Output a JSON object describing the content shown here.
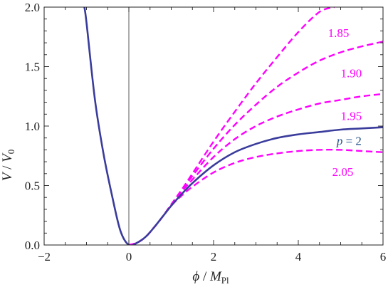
{
  "chart_data": {
    "type": "line",
    "title": "",
    "xlabel": {
      "var": "ϕ",
      "sep": " / ",
      "unit": "M",
      "unit_sub": "Pl"
    },
    "ylabel": {
      "var": "V",
      "sep": " / ",
      "unit": "V",
      "unit_sub": "0"
    },
    "xlim": [
      -2,
      6
    ],
    "ylim": [
      0,
      2
    ],
    "x_ticks": [
      -2,
      0,
      2,
      4,
      6
    ],
    "x_tick_labels": [
      "−2",
      "0",
      "2",
      "4",
      "6"
    ],
    "y_ticks": [
      0,
      0.5,
      1,
      1.5,
      2
    ],
    "y_tick_labels": [
      "0.0",
      "0.5",
      "1.0",
      "1.5",
      "2.0"
    ],
    "grid": false,
    "series": [
      {
        "name": "p = 2",
        "label": {
          "var": "p",
          "rest": " = 2"
        },
        "p": 2,
        "style": "solid",
        "color": "#3a3c9c",
        "x": [
          -1.05,
          -1.0,
          -0.8,
          -0.6,
          -0.4,
          -0.2,
          0,
          0.2,
          0.4,
          0.6,
          0.8,
          1.0,
          1.2,
          1.5,
          2.0,
          2.5,
          3.0,
          3.5,
          4.0,
          4.5,
          5.0,
          5.5,
          6.0
        ],
        "y": [
          2.0,
          1.87,
          1.22,
          0.77,
          0.42,
          0.12,
          0.0,
          0.02,
          0.07,
          0.15,
          0.24,
          0.33,
          0.41,
          0.52,
          0.67,
          0.78,
          0.85,
          0.9,
          0.93,
          0.95,
          0.97,
          0.98,
          0.99
        ]
      },
      {
        "name": "1.85",
        "label": {
          "var": "",
          "rest": "1.85"
        },
        "p": 1.85,
        "style": "dashed",
        "color": "#ff00ff",
        "x": [
          0,
          0.2,
          0.4,
          0.6,
          0.8,
          1.0,
          1.2,
          1.5,
          2.0,
          2.5,
          3.0,
          3.5,
          4.0,
          4.5,
          4.85
        ],
        "y": [
          0.0,
          0.02,
          0.07,
          0.15,
          0.24,
          0.34,
          0.44,
          0.6,
          0.87,
          1.12,
          1.36,
          1.58,
          1.79,
          1.96,
          2.0
        ]
      },
      {
        "name": "1.90",
        "label": {
          "var": "",
          "rest": "1.90"
        },
        "p": 1.9,
        "style": "dashed",
        "color": "#ff00ff",
        "x": [
          0,
          0.2,
          0.4,
          0.6,
          0.8,
          1.0,
          1.2,
          1.5,
          2.0,
          2.5,
          3.0,
          3.5,
          4.0,
          4.5,
          5.0,
          5.5,
          6.0
        ],
        "y": [
          0.0,
          0.02,
          0.07,
          0.15,
          0.24,
          0.34,
          0.44,
          0.58,
          0.81,
          1.01,
          1.18,
          1.33,
          1.45,
          1.55,
          1.62,
          1.67,
          1.71
        ]
      },
      {
        "name": "1.95",
        "label": {
          "var": "",
          "rest": "1.95"
        },
        "p": 1.95,
        "style": "dashed",
        "color": "#ff00ff",
        "x": [
          0,
          0.2,
          0.4,
          0.6,
          0.8,
          1.0,
          1.2,
          1.5,
          2.0,
          2.5,
          3.0,
          3.5,
          4.0,
          4.5,
          5.0,
          5.5,
          6.0
        ],
        "y": [
          0.0,
          0.02,
          0.07,
          0.15,
          0.24,
          0.34,
          0.43,
          0.55,
          0.74,
          0.89,
          1.0,
          1.08,
          1.14,
          1.19,
          1.22,
          1.25,
          1.27
        ]
      },
      {
        "name": "2.05",
        "label": {
          "var": "",
          "rest": "2.05"
        },
        "p": 2.05,
        "style": "dashed",
        "color": "#ff00ff",
        "x": [
          0,
          0.2,
          0.4,
          0.6,
          0.8,
          1.0,
          1.2,
          1.5,
          2.0,
          2.5,
          3.0,
          3.5,
          4.0,
          4.5,
          5.0,
          5.5,
          6.0
        ],
        "y": [
          0.0,
          0.02,
          0.07,
          0.15,
          0.24,
          0.33,
          0.4,
          0.49,
          0.61,
          0.69,
          0.74,
          0.77,
          0.79,
          0.8,
          0.8,
          0.79,
          0.78
        ]
      }
    ],
    "annotations": [
      {
        "text": "1.85",
        "x": 4.95,
        "y": 1.75,
        "color": "#ff00ff"
      },
      {
        "text": "1.90",
        "x": 5.25,
        "y": 1.41,
        "color": "#ff00ff"
      },
      {
        "text": "1.95",
        "x": 5.25,
        "y": 1.05,
        "color": "#ff00ff"
      },
      {
        "text": "p = 2",
        "x": 5.2,
        "y": 0.84,
        "color": "#1f4f8a"
      },
      {
        "text": "2.05",
        "x": 5.05,
        "y": 0.58,
        "color": "#ff00ff"
      }
    ]
  }
}
